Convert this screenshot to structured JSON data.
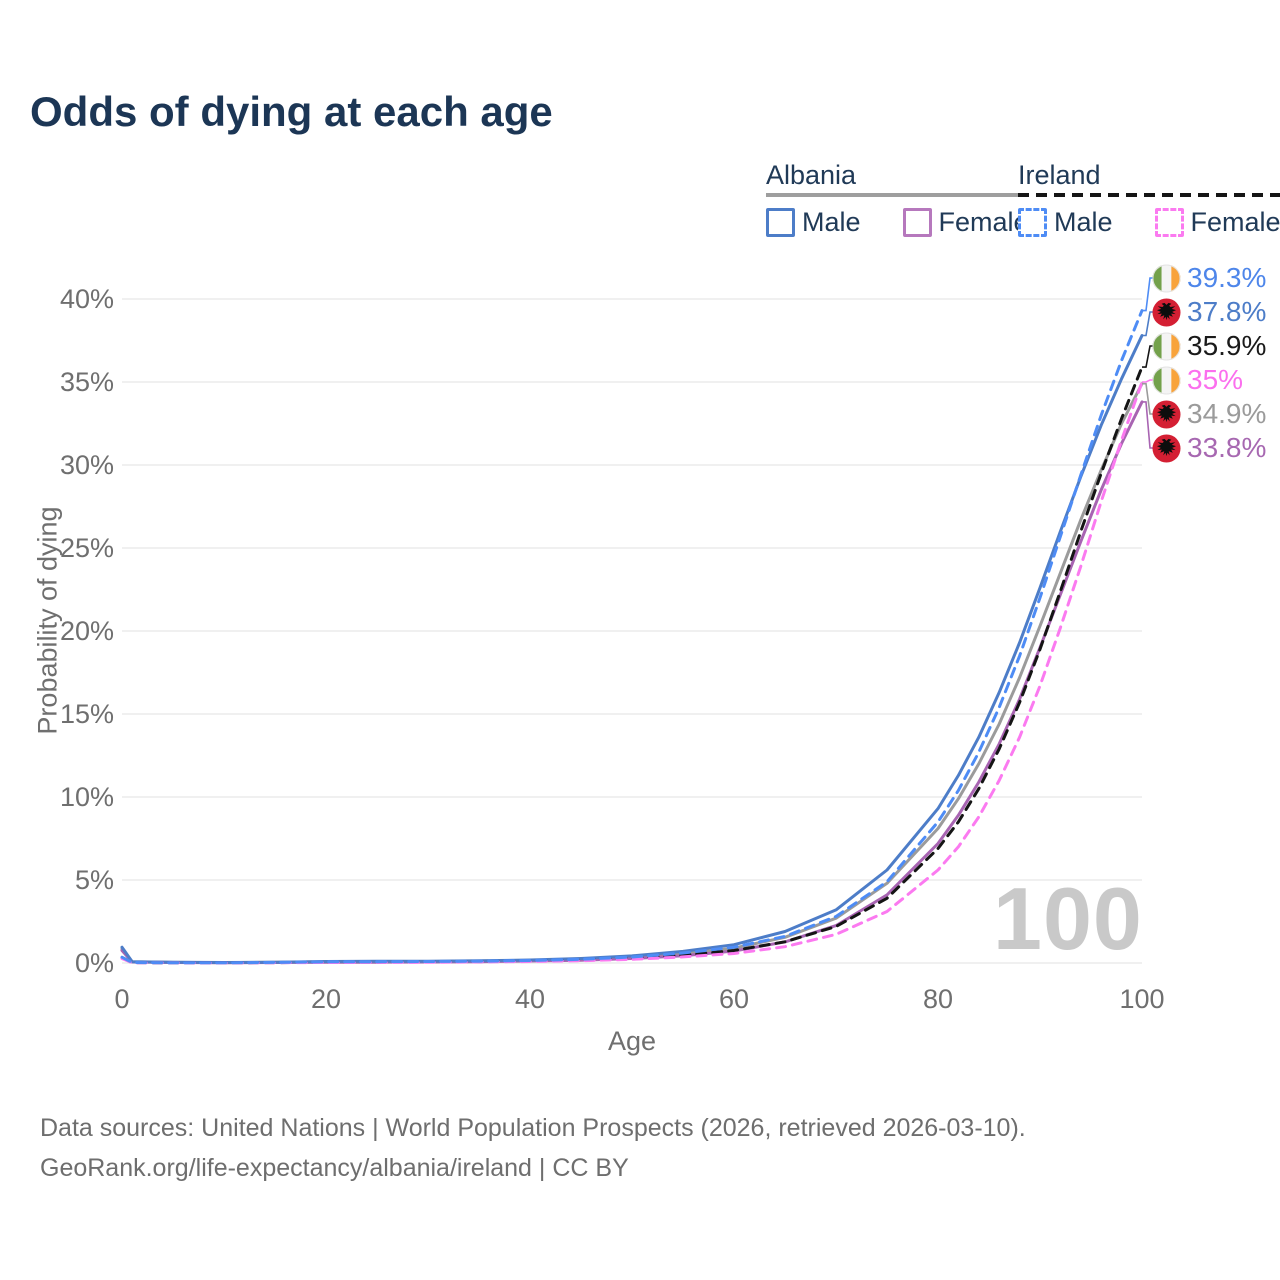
{
  "title": "Odds of dying at each age",
  "watermark": "100",
  "legend": {
    "groups": [
      {
        "label": "Albania",
        "underline_style": "solid",
        "underline_color": "#9e9e9e",
        "items": [
          {
            "label": "Male",
            "color": "#4d7dc8",
            "dash": "solid"
          },
          {
            "label": "Female",
            "color": "#b678bd",
            "dash": "solid"
          }
        ]
      },
      {
        "label": "Ireland",
        "underline_style": "dashed",
        "underline_color": "#151515",
        "items": [
          {
            "label": "Male",
            "color": "#4e8cf5",
            "dash": "dashed"
          },
          {
            "label": "Female",
            "color": "#fb7af0",
            "dash": "dashed"
          }
        ]
      }
    ]
  },
  "chart_data": {
    "type": "line",
    "title": "Odds of dying at each age",
    "xlabel": "Age",
    "ylabel": "Probability of dying",
    "xlim": [
      0,
      100
    ],
    "ylim": [
      0,
      40
    ],
    "x_ticks": [
      "0",
      "20",
      "40",
      "60",
      "80",
      "100"
    ],
    "x_tick_values": [
      0,
      20,
      40,
      60,
      80,
      100
    ],
    "y_ticks": [
      "0%",
      "5%",
      "10%",
      "15%",
      "20%",
      "25%",
      "30%",
      "35%",
      "40%"
    ],
    "y_tick_values": [
      0,
      5,
      10,
      15,
      20,
      25,
      30,
      35,
      40
    ],
    "grid": "horizontal",
    "legend_position": "top-right",
    "x": [
      0,
      1,
      5,
      10,
      15,
      20,
      25,
      30,
      35,
      40,
      45,
      50,
      55,
      60,
      65,
      70,
      75,
      80,
      82,
      84,
      86,
      88,
      90,
      92,
      94,
      96,
      98,
      100
    ],
    "series": [
      {
        "name": "Ireland Male",
        "country": "ireland",
        "sex": "male",
        "style": "dashed",
        "color": "#4e8cf5",
        "end_label": "39.3%",
        "label_color": "#4e86ea",
        "values": [
          0.35,
          0.03,
          0.015,
          0.012,
          0.035,
          0.07,
          0.08,
          0.09,
          0.11,
          0.15,
          0.22,
          0.36,
          0.6,
          0.95,
          1.6,
          2.8,
          4.9,
          8.5,
          10.4,
          12.7,
          15.4,
          18.5,
          22.0,
          25.7,
          29.4,
          33.0,
          36.3,
          39.3
        ]
      },
      {
        "name": "Albania Male",
        "country": "albania",
        "sex": "male",
        "style": "solid",
        "color": "#4d7dc8",
        "end_label": "37.8%",
        "label_color": "#4d7dc8",
        "values": [
          0.95,
          0.08,
          0.04,
          0.03,
          0.05,
          0.09,
          0.1,
          0.11,
          0.13,
          0.18,
          0.27,
          0.43,
          0.7,
          1.1,
          1.9,
          3.2,
          5.6,
          9.3,
          11.3,
          13.6,
          16.3,
          19.3,
          22.6,
          26.0,
          29.3,
          32.4,
          35.2,
          37.8
        ]
      },
      {
        "name": "Ireland Total",
        "country": "ireland",
        "sex": "total",
        "style": "dashed",
        "color": "#151515",
        "end_label": "35.9%",
        "label_color": "#1a1a1a",
        "values": [
          0.3,
          0.025,
          0.012,
          0.01,
          0.025,
          0.045,
          0.055,
          0.065,
          0.085,
          0.12,
          0.18,
          0.29,
          0.47,
          0.75,
          1.28,
          2.2,
          3.9,
          6.9,
          8.5,
          10.5,
          12.9,
          15.7,
          18.9,
          22.4,
          26.0,
          29.5,
          32.8,
          35.9
        ]
      },
      {
        "name": "Ireland Female",
        "country": "ireland",
        "sex": "female",
        "style": "dashed",
        "color": "#fb7af0",
        "end_label": "35%",
        "label_color": "#fb6fee",
        "values": [
          0.27,
          0.02,
          0.01,
          0.009,
          0.018,
          0.028,
          0.035,
          0.045,
          0.065,
          0.09,
          0.14,
          0.22,
          0.37,
          0.57,
          0.98,
          1.72,
          3.1,
          5.6,
          7.0,
          8.8,
          11.0,
          13.6,
          16.7,
          20.2,
          23.9,
          27.8,
          31.5,
          35.0
        ]
      },
      {
        "name": "Albania Total",
        "country": "albania",
        "sex": "total",
        "style": "solid",
        "color": "#9b9b9b",
        "end_label": "34.9%",
        "label_color": "#9b9b9b",
        "values": [
          0.85,
          0.07,
          0.035,
          0.025,
          0.04,
          0.07,
          0.075,
          0.085,
          0.11,
          0.15,
          0.22,
          0.35,
          0.56,
          0.9,
          1.55,
          2.7,
          4.8,
          8.1,
          9.9,
          12.0,
          14.4,
          17.2,
          20.3,
          23.5,
          26.7,
          29.7,
          32.5,
          34.9
        ]
      },
      {
        "name": "Albania Female",
        "country": "albania",
        "sex": "female",
        "style": "solid",
        "color": "#a864b2",
        "end_label": "33.8%",
        "label_color": "#a768b1",
        "values": [
          0.75,
          0.06,
          0.03,
          0.02,
          0.03,
          0.045,
          0.05,
          0.06,
          0.08,
          0.12,
          0.17,
          0.27,
          0.44,
          0.72,
          1.27,
          2.25,
          4.1,
          7.2,
          8.9,
          10.9,
          13.2,
          15.9,
          19.0,
          22.2,
          25.4,
          28.5,
          31.3,
          33.8
        ]
      }
    ]
  },
  "flags": {
    "ireland": {
      "green": "#73a14b",
      "white": "#f4f4f4",
      "orange": "#f8a33b"
    },
    "albania": {
      "red": "#d41f33",
      "eagle": "#0d0d0d"
    }
  },
  "footer": {
    "line1": "Data sources: United Nations | World Population Prospects (2026, retrieved 2026-03-10).",
    "line2": "GeoRank.org/life-expectancy/albania/ireland | CC BY"
  }
}
